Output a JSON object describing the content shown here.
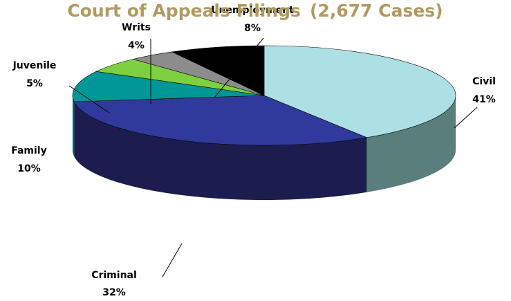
{
  "chart_data": {
    "type": "pie",
    "style": "3d",
    "title": "Court of Appeals Filings",
    "title_suffix": "(2,677 Cases)",
    "slices": [
      {
        "name": "Civil",
        "value": 41,
        "label": "41%",
        "color": "#ade0e5",
        "side_color": "#5a7e7b"
      },
      {
        "name": "Criminal",
        "value": 32,
        "label": "32%",
        "color": "#2f3a9c",
        "side_color": "#1d1c4e"
      },
      {
        "name": "Family",
        "value": 10,
        "label": "10%",
        "color": "#019797",
        "side_color": "#015a5a"
      },
      {
        "name": "Juvenile",
        "value": 5,
        "label": "5%",
        "color": "#7ed03f",
        "side_color": "#4a7a25"
      },
      {
        "name": "Writs",
        "value": 4,
        "label": "4%",
        "color": "#8c8c8c",
        "side_color": "#555555"
      },
      {
        "name": "Unemployment",
        "value": 8,
        "label": "8%",
        "color": "#000000",
        "side_color": "#000000"
      }
    ],
    "title_color": "#b09a5e",
    "legend": "none"
  }
}
